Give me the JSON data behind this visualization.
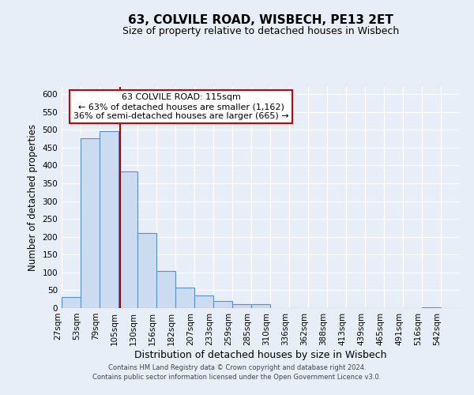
{
  "title": "63, COLVILE ROAD, WISBECH, PE13 2ET",
  "subtitle": "Size of property relative to detached houses in Wisbech",
  "xlabel": "Distribution of detached houses by size in Wisbech",
  "ylabel": "Number of detached properties",
  "bar_labels": [
    "27sqm",
    "53sqm",
    "79sqm",
    "105sqm",
    "130sqm",
    "156sqm",
    "182sqm",
    "207sqm",
    "233sqm",
    "259sqm",
    "285sqm",
    "310sqm",
    "336sqm",
    "362sqm",
    "388sqm",
    "413sqm",
    "439sqm",
    "465sqm",
    "491sqm",
    "516sqm",
    "542sqm"
  ],
  "bar_values": [
    32,
    475,
    496,
    383,
    210,
    105,
    57,
    35,
    20,
    12,
    10,
    0,
    0,
    0,
    0,
    0,
    0,
    0,
    0,
    2,
    1
  ],
  "bar_color": "#ccdcf0",
  "bar_edge_color": "#5b8fcc",
  "property_line_color": "#aa0000",
  "annotation_title": "63 COLVILE ROAD: 115sqm",
  "annotation_line1": "← 63% of detached houses are smaller (1,162)",
  "annotation_line2": "36% of semi-detached houses are larger (665) →",
  "annotation_box_color": "#ffffff",
  "annotation_box_edge": "#cc0000",
  "ylim": [
    0,
    620
  ],
  "yticks": [
    0,
    50,
    100,
    150,
    200,
    250,
    300,
    350,
    400,
    450,
    500,
    550,
    600
  ],
  "background_color": "#e8eef8",
  "grid_color": "#d0d8e8",
  "footer_line1": "Contains HM Land Registry data © Crown copyright and database right 2024.",
  "footer_line2": "Contains public sector information licensed under the Open Government Licence v3.0.",
  "title_fontsize": 11,
  "subtitle_fontsize": 9,
  "xlabel_fontsize": 9,
  "ylabel_fontsize": 8.5,
  "tick_fontsize": 7.5,
  "annot_fontsize": 8.0,
  "footer_fontsize": 6.0
}
